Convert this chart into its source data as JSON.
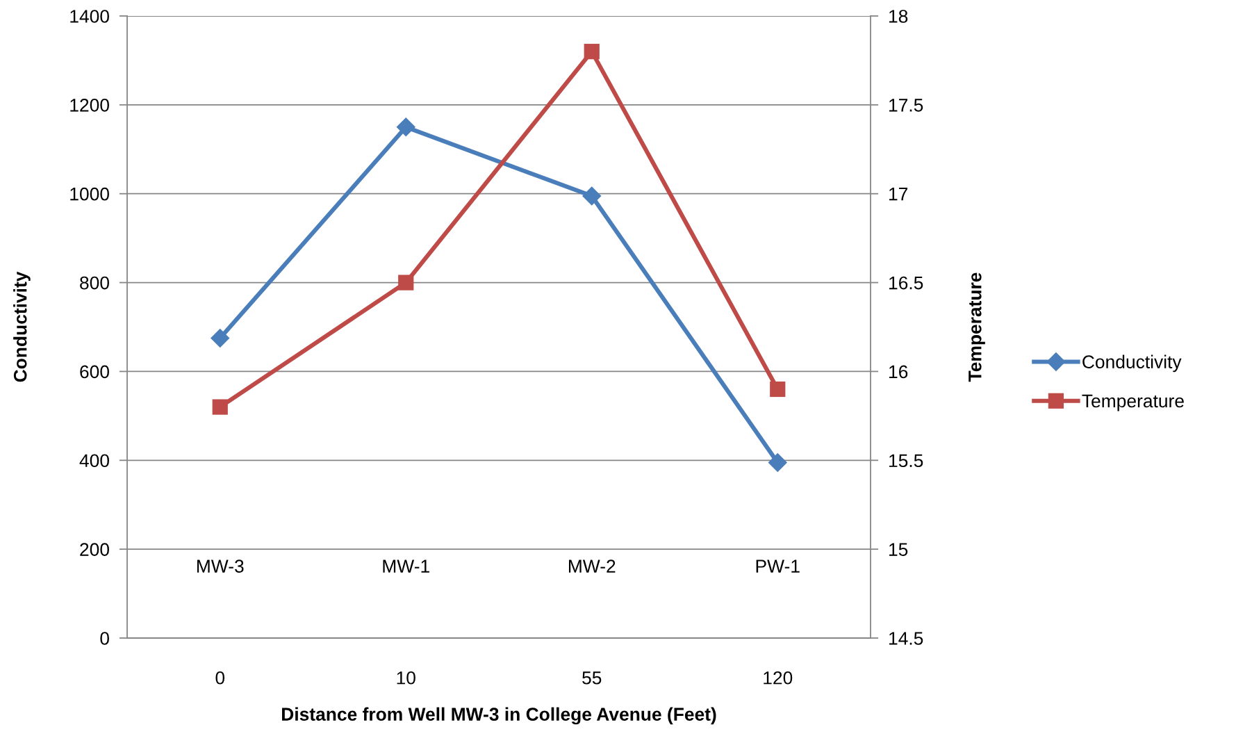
{
  "chart_data": {
    "type": "line",
    "xlabel": "Distance from Well MW-3 in College Avenue (Feet)",
    "ylabel": "Conductivity",
    "y2label": "Temperature",
    "categories": [
      "0",
      "10",
      "55",
      "120"
    ],
    "series": [
      {
        "name": "Conductivity",
        "color": "#4a7ebb",
        "values": [
          675,
          1150,
          995,
          395
        ],
        "marker": "diamond"
      },
      {
        "name": "Temperature",
        "color": "#be4b48",
        "values": [
          15.8,
          16.5,
          17.8,
          15.9
        ],
        "axis": "y2",
        "marker": "square"
      }
    ],
    "ylim": [
      0,
      1400
    ],
    "yticks": [
      0,
      200,
      400,
      600,
      800,
      1000,
      1200,
      1400
    ],
    "y2lim": [
      14.5,
      18
    ],
    "y2ticks": [
      14.5,
      15,
      15.5,
      16,
      16.5,
      17,
      17.5,
      18
    ],
    "grid": "y",
    "legend": "right",
    "line_style": "solid",
    "annotations": [
      "MW-3",
      "MW-1",
      "MW-2",
      "PW-1"
    ]
  }
}
